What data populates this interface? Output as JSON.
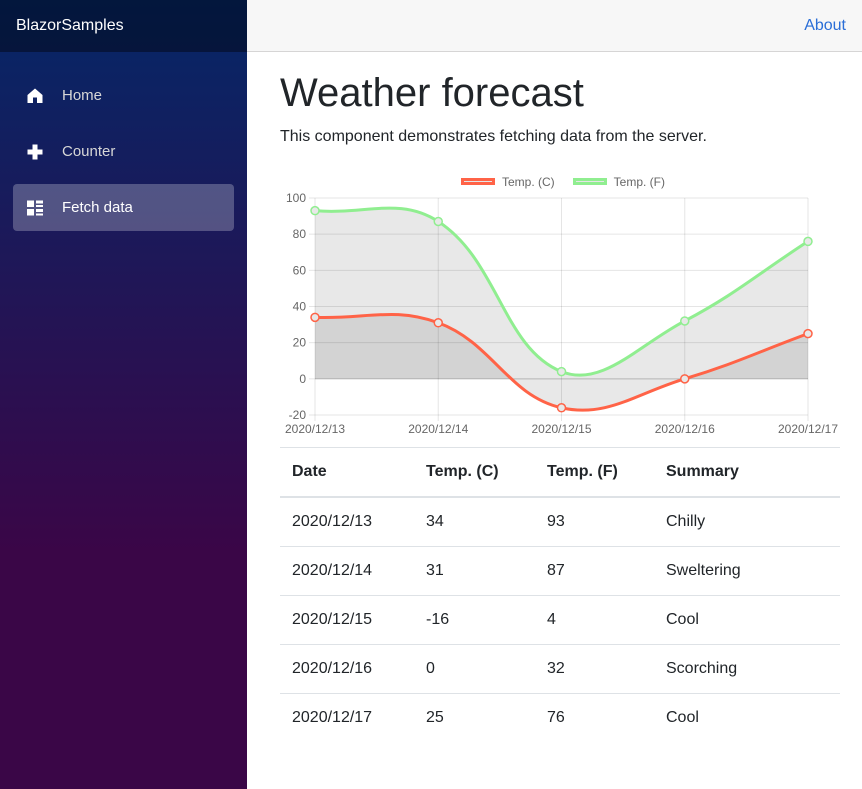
{
  "sidebar": {
    "brand": "BlazorSamples",
    "items": [
      {
        "label": "Home",
        "icon": "home-icon",
        "active": false
      },
      {
        "label": "Counter",
        "icon": "plus-icon",
        "active": false
      },
      {
        "label": "Fetch data",
        "icon": "list-rich-icon",
        "active": true
      }
    ]
  },
  "topbar": {
    "about_label": "About"
  },
  "main": {
    "title": "Weather forecast",
    "description": "This component demonstrates fetching data from the server."
  },
  "chart_data": {
    "type": "line",
    "x": [
      "2020/12/13",
      "2020/12/14",
      "2020/12/15",
      "2020/12/16",
      "2020/12/17"
    ],
    "series": [
      {
        "name": "Temp. (C)",
        "color": "#ff6347",
        "values": [
          34,
          31,
          -16,
          0,
          25
        ]
      },
      {
        "name": "Temp. (F)",
        "color": "#90ee90",
        "values": [
          93,
          87,
          4,
          32,
          76
        ]
      }
    ],
    "ylim": [
      -20,
      100
    ],
    "yticks": [
      -20,
      0,
      20,
      40,
      60,
      80,
      100
    ],
    "fill_color": "rgba(0,0,0,0.09)",
    "grid": true,
    "legend_position": "top",
    "line_tension": 0.4
  },
  "table": {
    "headers": [
      "Date",
      "Temp. (C)",
      "Temp. (F)",
      "Summary"
    ],
    "rows": [
      [
        "2020/12/13",
        "34",
        "93",
        "Chilly"
      ],
      [
        "2020/12/14",
        "31",
        "87",
        "Sweltering"
      ],
      [
        "2020/12/15",
        "-16",
        "4",
        "Cool"
      ],
      [
        "2020/12/16",
        "0",
        "32",
        "Scorching"
      ],
      [
        "2020/12/17",
        "25",
        "76",
        "Cool"
      ]
    ]
  },
  "theme": {
    "sidebar_gradient_top": "#052767",
    "sidebar_gradient_bottom": "#3a0647",
    "brand_bar_overlay": "rgba(0,0,0,0.4)",
    "topbar_bg": "#f7f7f7",
    "topbar_border": "#d6d5d5",
    "link_color": "#2a6ed7",
    "nav_text": "#d7d7d7",
    "nav_active_bg": "rgba(255,255,255,0.25)",
    "text_color": "#212529",
    "table_border": "#dee2e6",
    "grid_color": "rgba(0,0,0,0.1)",
    "zero_line_color": "rgba(0,0,0,0.22)",
    "tick_text_color": "#666666"
  }
}
